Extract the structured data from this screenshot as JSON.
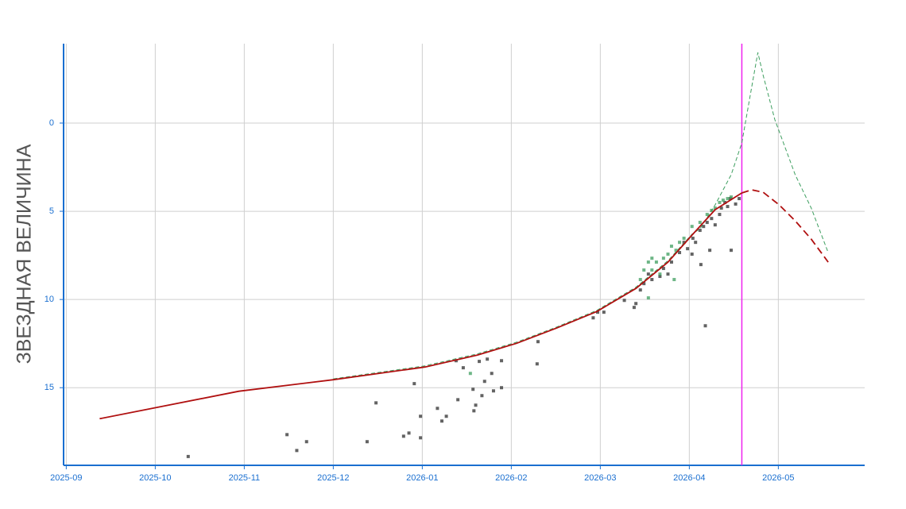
{
  "chart_data": {
    "type": "line",
    "y_label": "ЗВЕЗДНАЯ ВЕЛИЧИНА",
    "xlim": [
      -0.03,
      8.97
    ],
    "ylim": [
      -4.5,
      19.4
    ],
    "y_inverted": true,
    "grid": true,
    "axis_color": "#1a6fd0",
    "xticks": [
      {
        "value": 0,
        "label": "2025-09"
      },
      {
        "value": 1,
        "label": "2025-10"
      },
      {
        "value": 2,
        "label": "2025-11"
      },
      {
        "value": 3,
        "label": "2025-12"
      },
      {
        "value": 4,
        "label": "2026-01"
      },
      {
        "value": 5,
        "label": "2026-02"
      },
      {
        "value": 6,
        "label": "2026-03"
      },
      {
        "value": 7,
        "label": "2026-04"
      },
      {
        "value": 8,
        "label": "2026-05"
      }
    ],
    "yticks": [
      0,
      5,
      10,
      15
    ],
    "vline": {
      "value": 7.59,
      "color": "#ee22ee"
    },
    "series": [
      {
        "kind": "scatter",
        "color": "#2f2f2f",
        "x": [
          1.37,
          2.48,
          2.59,
          2.7,
          3.38,
          3.48,
          3.79,
          3.85,
          3.91,
          3.98,
          3.98,
          4.17,
          4.22,
          4.27,
          4.38,
          4.4,
          4.46,
          4.57,
          4.58,
          4.6,
          4.64,
          4.67,
          4.7,
          4.73,
          4.78,
          4.8,
          4.89,
          4.89,
          5.29,
          5.3,
          5.92,
          5.97,
          6.04,
          6.27,
          6.38,
          6.4,
          6.49,
          6.58,
          6.67,
          6.71,
          6.8,
          6.89,
          6.98,
          7.04,
          7.07,
          7.12,
          7.13,
          7.18,
          7.2,
          7.23,
          7.25,
          7.29,
          7.34,
          7.36,
          7.4,
          7.43,
          7.46,
          7.47,
          7.52,
          7.56,
          6.45,
          6.54,
          6.76,
          6.94,
          7.03,
          7.16
        ],
        "values": [
          18.9,
          17.66,
          18.56,
          18.06,
          18.06,
          15.86,
          17.75,
          17.57,
          14.77,
          16.62,
          17.84,
          16.17,
          16.89,
          16.62,
          13.47,
          15.68,
          13.87,
          15.09,
          16.31,
          15.99,
          13.51,
          15.45,
          14.64,
          13.38,
          14.19,
          15.18,
          15.0,
          13.47,
          13.65,
          12.39,
          11.04,
          10.72,
          10.72,
          10.05,
          10.45,
          10.23,
          9.1,
          8.87,
          8.69,
          8.24,
          7.88,
          7.34,
          7.12,
          6.53,
          6.76,
          6.08,
          8.02,
          11.49,
          5.63,
          7.21,
          5.41,
          5.77,
          5.18,
          4.82,
          4.5,
          4.73,
          4.28,
          7.21,
          4.59,
          4.28,
          9.46,
          8.56,
          8.56,
          6.76,
          7.43,
          5.86
        ]
      },
      {
        "kind": "scatter",
        "color": "#3d9e5f",
        "x": [
          6.45,
          6.49,
          6.54,
          6.58,
          6.63,
          6.67,
          6.71,
          6.76,
          6.8,
          6.85,
          6.54,
          6.83,
          6.89,
          6.94,
          7.03,
          7.12,
          7.2,
          7.25,
          7.29,
          7.34,
          7.38,
          7.43,
          7.47,
          4.54,
          6.58
        ],
        "values": [
          8.87,
          8.33,
          7.88,
          8.33,
          7.88,
          8.56,
          7.66,
          7.43,
          6.98,
          7.21,
          9.91,
          8.87,
          6.76,
          6.53,
          5.86,
          5.63,
          5.18,
          4.95,
          4.82,
          4.5,
          4.37,
          4.28,
          4.19,
          14.19,
          7.66
        ]
      },
      {
        "kind": "line",
        "dash": true,
        "width": 1,
        "color": "#3d9e5f",
        "x": [
          3.0,
          4.03,
          4.62,
          5.06,
          5.51,
          5.96,
          6.4,
          6.76,
          7.03,
          7.12,
          7.29,
          7.47,
          7.59,
          7.7,
          7.77,
          7.83,
          7.96,
          8.19,
          8.37,
          8.56
        ],
        "values": [
          14.5,
          13.76,
          13.08,
          12.42,
          11.56,
          10.62,
          9.3,
          7.8,
          6.3,
          5.99,
          4.64,
          2.93,
          1.13,
          -2.03,
          -4.0,
          -2.7,
          -0.2,
          2.93,
          4.82,
          7.34
        ]
      },
      {
        "kind": "line",
        "dash": false,
        "width": 1.8,
        "color": "#b01010",
        "x": [
          0.375,
          1.94,
          3.0,
          4.03,
          4.62,
          5.06,
          5.51,
          5.96,
          6.4,
          6.76,
          7.03,
          7.29,
          7.59
        ],
        "values": [
          16.76,
          15.2,
          14.55,
          13.83,
          13.15,
          12.48,
          11.62,
          10.68,
          9.37,
          7.88,
          6.35,
          4.91,
          3.96
        ]
      },
      {
        "kind": "line",
        "dash": true,
        "width": 1.8,
        "color": "#b01010",
        "x": [
          7.59,
          7.7,
          7.83,
          8.01,
          8.19,
          8.37,
          8.56
        ],
        "values": [
          3.96,
          3.78,
          3.92,
          4.64,
          5.54,
          6.58,
          7.88
        ]
      }
    ]
  }
}
